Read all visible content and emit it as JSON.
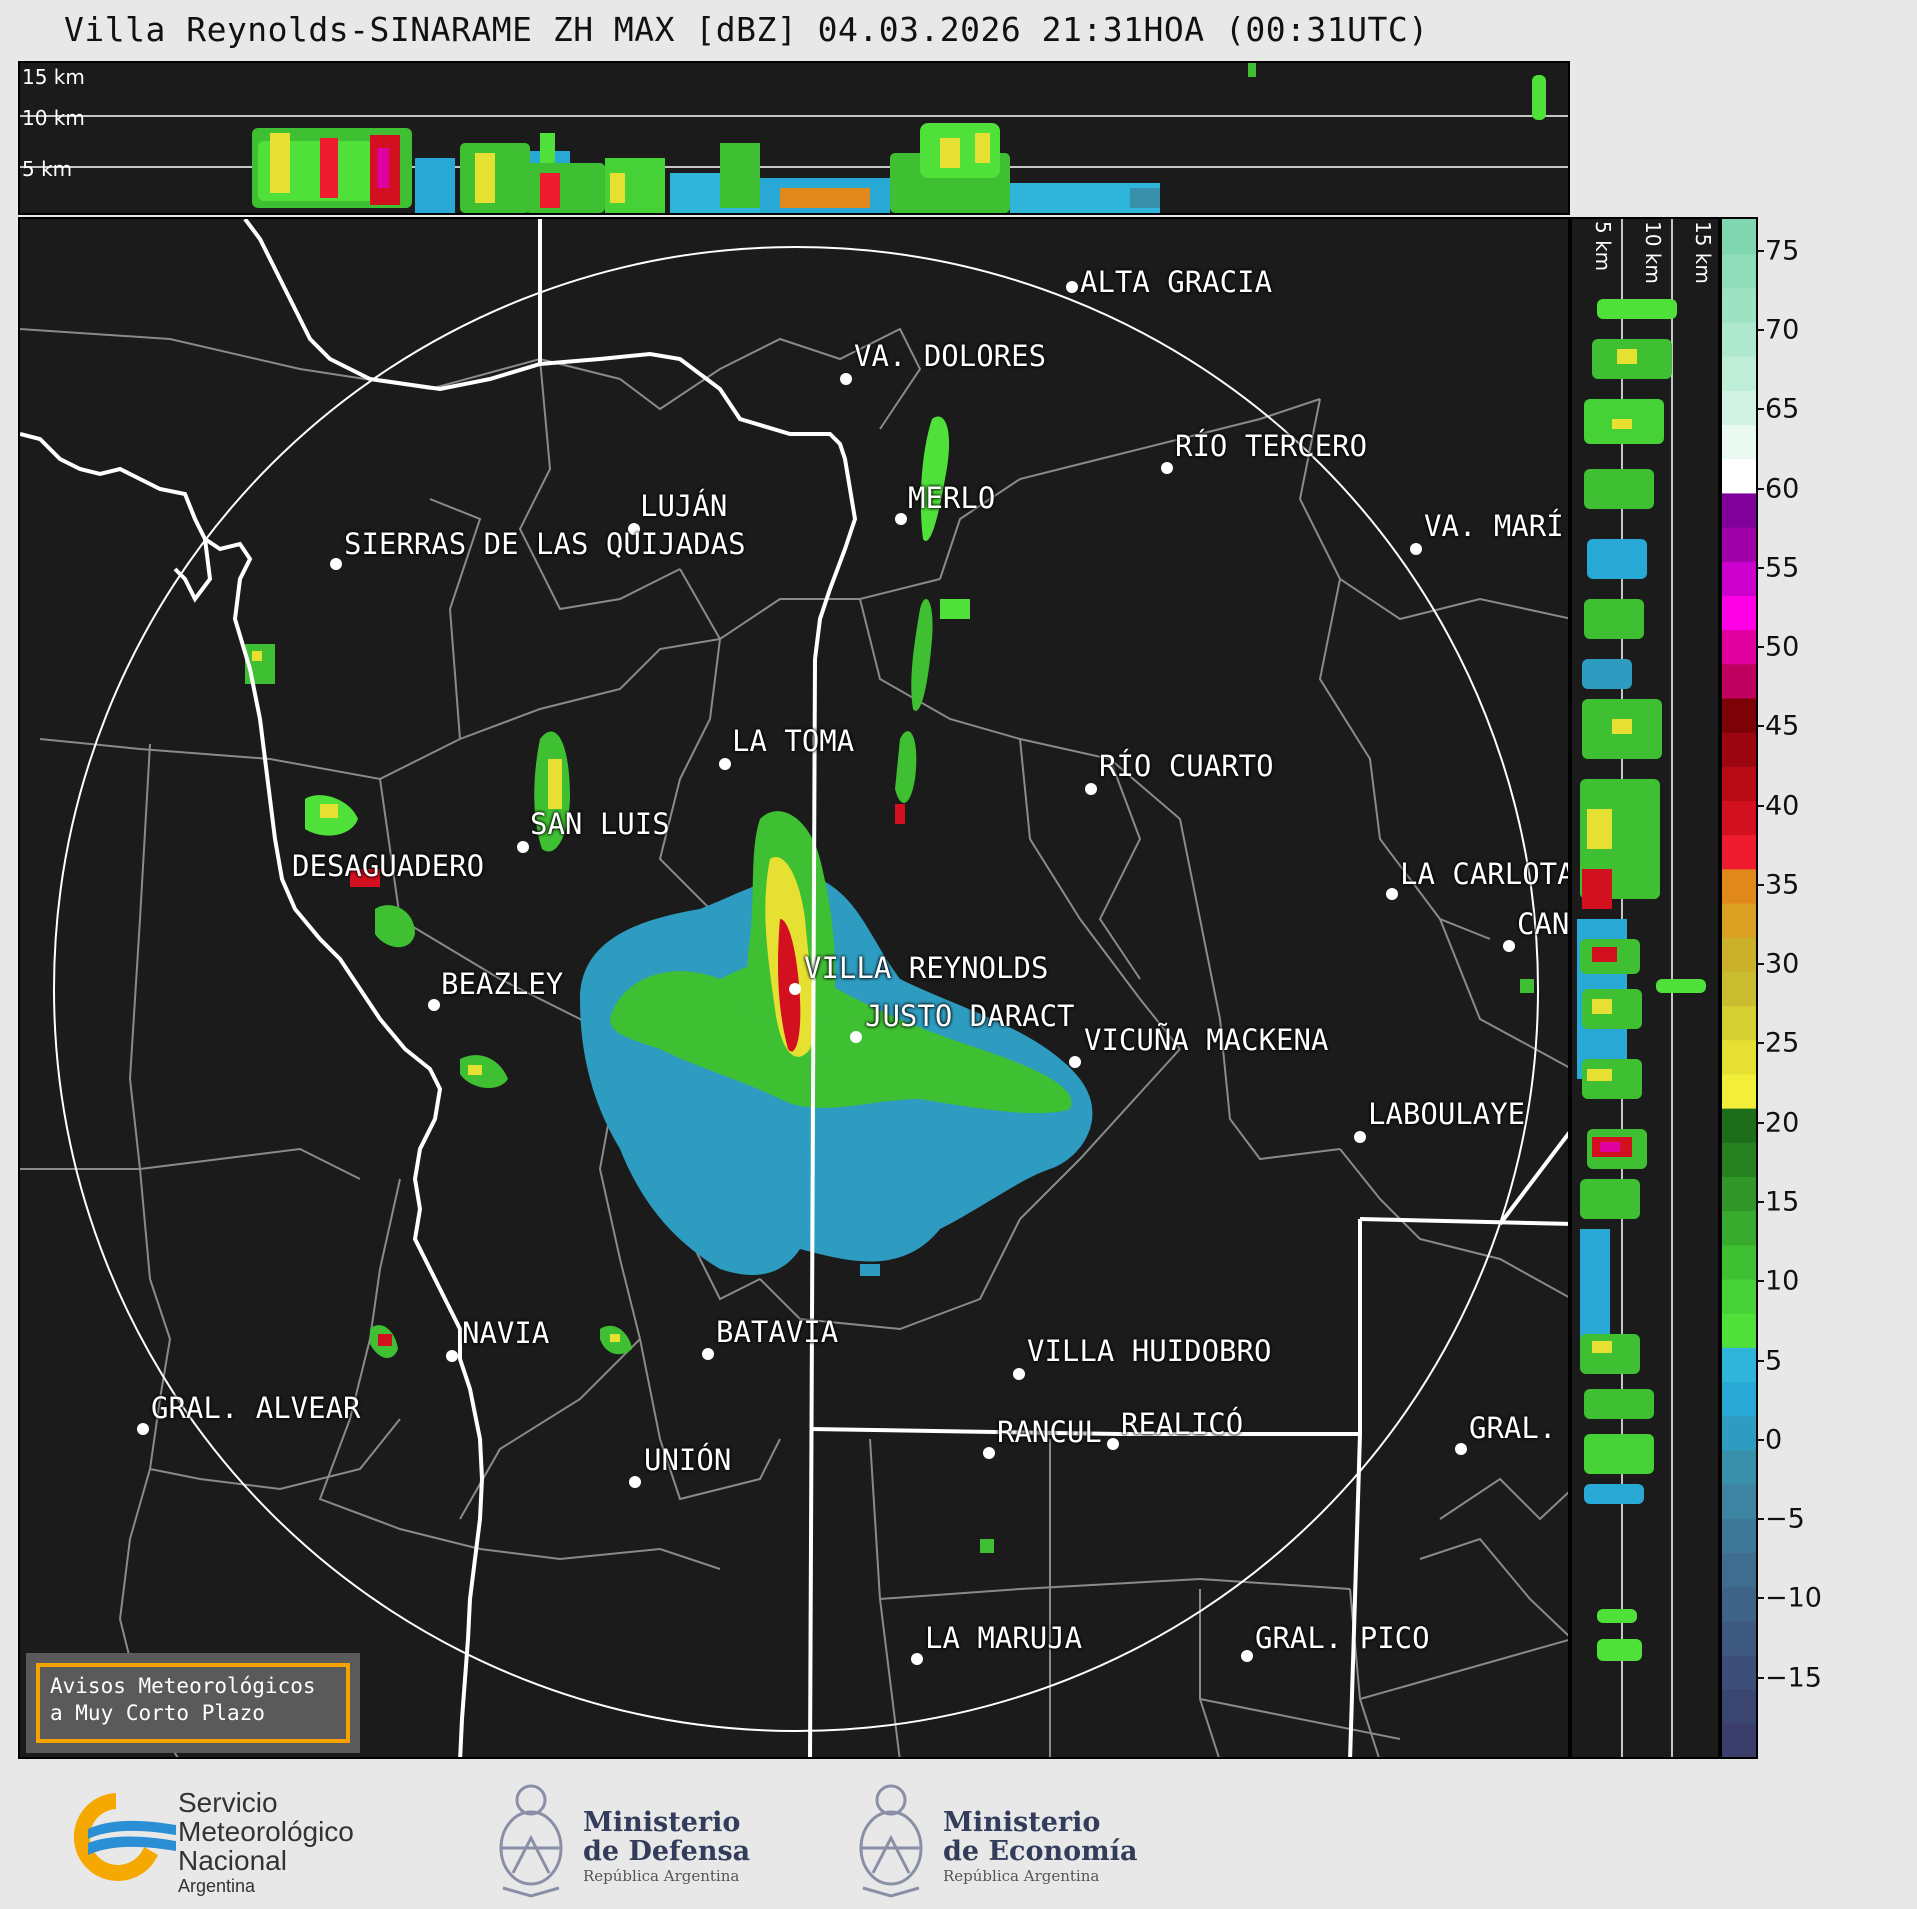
{
  "title": "Villa Reynolds-SINARAME ZH MAX [dBZ] 04.03.2026 21:31HOA (00:31UTC)",
  "top_section": {
    "altitude_labels": [
      "15 km",
      "10 km",
      "5 km"
    ]
  },
  "right_section": {
    "altitude_labels": [
      "5 km",
      "10 km",
      "15 km"
    ]
  },
  "colorbar": {
    "ticks": [
      "75",
      "70",
      "65",
      "60",
      "55",
      "50",
      "45",
      "40",
      "35",
      "30",
      "25",
      "20",
      "15",
      "10",
      "5",
      "0",
      "−5",
      "−10",
      "−15"
    ],
    "tick_values": [
      75,
      70,
      65,
      60,
      55,
      50,
      45,
      40,
      35,
      30,
      25,
      20,
      15,
      10,
      5,
      0,
      -5,
      -10,
      -15
    ],
    "range": [
      -20,
      77
    ],
    "colors_low_to_high": [
      "#3b3e6b",
      "#3b4670",
      "#3d4f78",
      "#3e5980",
      "#3f6387",
      "#3f6d8f",
      "#3e7898",
      "#3c84a1",
      "#3890aa",
      "#2e9cc0",
      "#28a8d4",
      "#2fb4dc",
      "#4fe03a",
      "#46d236",
      "#3fbf32",
      "#38aa2d",
      "#2f9627",
      "#268221",
      "#1e6d1b",
      "#f2ee3a",
      "#e6e033",
      "#d6cf31",
      "#c9bd2f",
      "#cbb12b",
      "#d9a021",
      "#e0891a",
      "#ee1c2e",
      "#d3101f",
      "#b80b16",
      "#9c0610",
      "#7c0208",
      "#c0005e",
      "#e000a0",
      "#ff00e6",
      "#cc00cc",
      "#a000a8",
      "#80009a",
      "#ffffff",
      "#eafaf0",
      "#d2f3e3",
      "#bfeed8",
      "#aee8ce",
      "#9ee2c4",
      "#8edcba",
      "#7fd6b0"
    ]
  },
  "cities": [
    {
      "name": "ALTA GRACIA"
    },
    {
      "name": "VA. DOLORES"
    },
    {
      "name": "RÍO TERCERO"
    },
    {
      "name": "LUJÁN"
    },
    {
      "name": "MERLO"
    },
    {
      "name": "VA. MARÍ"
    },
    {
      "name": "SIERRAS DE LAS QUIJADAS"
    },
    {
      "name": "LA TOMA"
    },
    {
      "name": "RÍO CUARTO"
    },
    {
      "name": "SAN LUIS"
    },
    {
      "name": "DESAGUADERO"
    },
    {
      "name": "LA CARLOTA"
    },
    {
      "name": "CAN"
    },
    {
      "name": "VILLA REYNOLDS"
    },
    {
      "name": "BEAZLEY"
    },
    {
      "name": "JUSTO DARACT"
    },
    {
      "name": "VICUÑA MACKENA"
    },
    {
      "name": "LABOULAYE"
    },
    {
      "name": "NAVIA"
    },
    {
      "name": "BATAVIA"
    },
    {
      "name": "VILLA HUIDOBRO"
    },
    {
      "name": "GRAL. ALVEAR"
    },
    {
      "name": "RANCUL"
    },
    {
      "name": "REALICÓ"
    },
    {
      "name": "GRAL."
    },
    {
      "name": "UNIÓN"
    },
    {
      "name": "LA MARUJA"
    },
    {
      "name": "GRAL. PICO"
    }
  ],
  "avisos": {
    "line1": "Avisos Meteorológicos",
    "line2": "a Muy Corto Plazo"
  },
  "logos": {
    "smn": {
      "line1": "Servicio",
      "line2": "Meteorológico",
      "line3": "Nacional",
      "line4": "Argentina"
    },
    "defensa": {
      "line1": "Ministerio",
      "line2": "de Defensa",
      "line3": "República Argentina"
    },
    "economia": {
      "line1": "Ministerio",
      "line2": "de Economía",
      "line3": "República Argentina"
    }
  }
}
